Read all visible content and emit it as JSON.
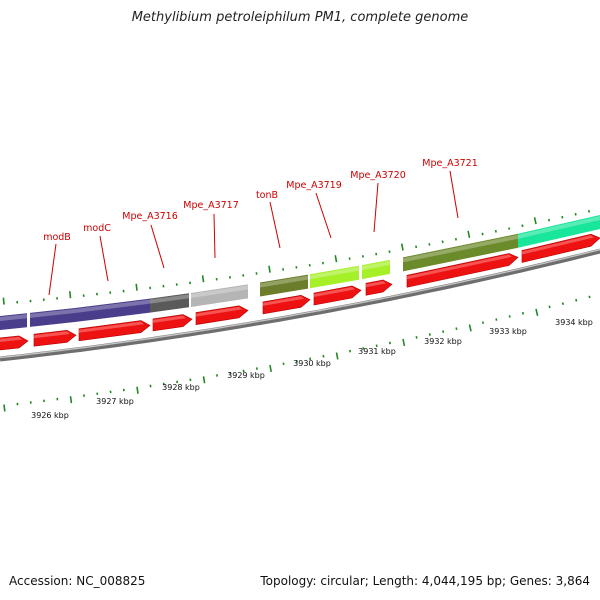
{
  "title": "Methylibium petroleiphilum PM1, complete genome",
  "accession": "Accession: NC_008825",
  "summary": "Topology: circular; Length: 4,044,195 bp; Genes: 3,864",
  "colors": {
    "gene_label": "#cc0000",
    "cds_arrow": "#ee1111",
    "backbone": "#888888",
    "tick": "#228822"
  },
  "gene_labels": [
    "modB",
    "modC",
    "Mpe_A3716",
    "Mpe_A3717",
    "tonB",
    "Mpe_A3719",
    "Mpe_A3720",
    "Mpe_A3721"
  ],
  "scale_labels": [
    "3926 kbp",
    "3927 kbp",
    "3928 kbp",
    "3929 kbp",
    "3930 kbp",
    "3931 kbp",
    "3932 kbp",
    "3933 kbp",
    "3934 kbp"
  ]
}
